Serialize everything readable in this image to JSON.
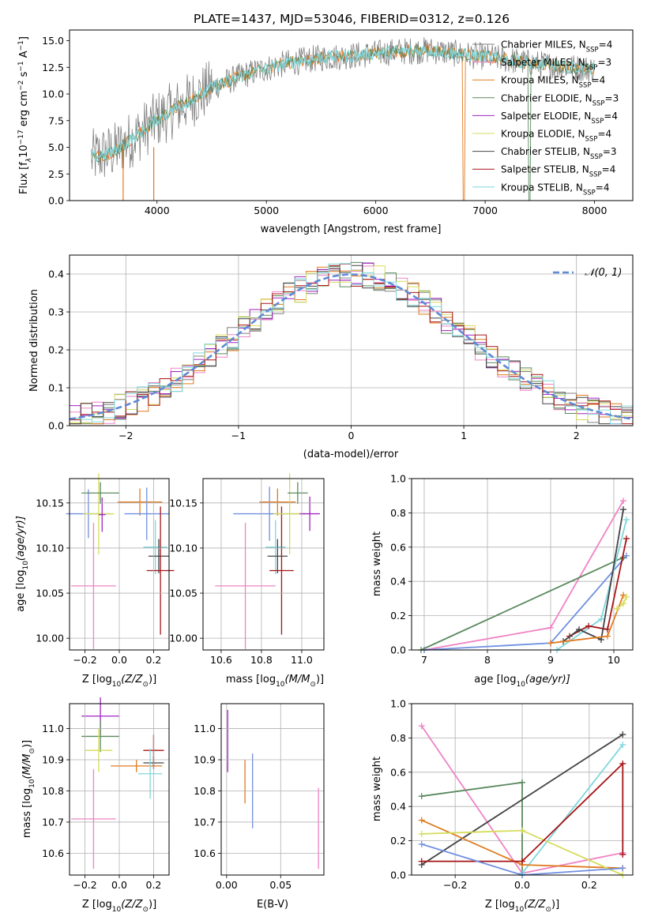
{
  "figure": {
    "title": "PLATE=1437, MJD=53046, FIBERID=0312, z=0.126"
  },
  "colors": {
    "chabrier_miles": "#808080",
    "salpeter_miles": "#ef83c4",
    "kroupa_miles": "#e07a1f",
    "chabrier_elodie": "#5a8a5e",
    "salpeter_elodie": "#a324c2",
    "kroupa_elodie": "#d6dc5a",
    "chabrier_stelib": "#444444",
    "salpeter_stelib": "#a81416",
    "kroupa_stelib": "#7fd6dc",
    "gauss": "#5f8ad6",
    "blue": "#6f8fe0"
  },
  "chart_data": [
    {
      "id": "spectrum",
      "type": "line",
      "xlabel": "wavelength [Angstrom, rest frame]",
      "ylabel_main": "Flux [f",
      "ylabel_sub": "λ",
      "ylabel_rest": "10",
      "ylabel_exp": "−17",
      "ylabel_tail": " erg cm",
      "ylabel_tail2": " s",
      "ylabel_tail3": " A",
      "xlim": [
        3200,
        8350
      ],
      "ylim": [
        0,
        16
      ],
      "xticks": [
        "4000",
        "5000",
        "6000",
        "7000",
        "8000"
      ],
      "yticks": [
        "0.0",
        "2.5",
        "5.0",
        "7.5",
        "10.0",
        "12.5",
        "15.0"
      ],
      "legend": [
        {
          "label": "Chabrier MILES, N",
          "n": "4"
        },
        {
          "label": "Salpeter MILES, N",
          "n": "3"
        },
        {
          "label": "Kroupa MILES, N",
          "n": "4"
        },
        {
          "label": "Chabrier ELODIE, N",
          "n": "3"
        },
        {
          "label": "Salpeter ELODIE, N",
          "n": "4"
        },
        {
          "label": "Kroupa ELODIE, N",
          "n": "4"
        },
        {
          "label": "Chabrier STELIB, N",
          "n": "3"
        },
        {
          "label": "Salpeter STELIB, N",
          "n": "4"
        },
        {
          "label": "Kroupa STELIB, N",
          "n": "4"
        }
      ],
      "legend_sub": "SSP",
      "model_trend": {
        "x": [
          3400,
          3600,
          3800,
          4000,
          4200,
          4500,
          4800,
          5000,
          5200,
          5500,
          5800,
          6000,
          6200,
          6500,
          6800,
          7000,
          7200,
          7500,
          7800,
          8000
        ],
        "y": [
          4.0,
          4.6,
          6.0,
          7.6,
          8.8,
          10.6,
          11.8,
          12.4,
          12.9,
          13.4,
          13.6,
          13.8,
          14.0,
          14.1,
          13.7,
          13.5,
          13.2,
          12.8,
          12.5,
          12.3
        ]
      },
      "model_cutoffs": [
        {
          "name": "Kroupa ELODIE",
          "x": 6800
        },
        {
          "name": "Chabrier ELODIE",
          "x": 7400
        }
      ]
    },
    {
      "id": "residuals",
      "type": "histogram",
      "xlabel": "(data-model)/error",
      "ylabel": "Normed distribution",
      "xlim": [
        -2.5,
        2.5
      ],
      "ylim": [
        0,
        0.45
      ],
      "xticks": [
        "−2",
        "−1",
        "0",
        "1",
        "2"
      ],
      "yticks": [
        "0.0",
        "0.1",
        "0.2",
        "0.3",
        "0.4"
      ],
      "legend": "𝒩(0, 1)",
      "bin_width": 0.1,
      "gaussian": {
        "mu": 0,
        "sigma": 1
      }
    },
    {
      "id": "age_vs_Z",
      "type": "scatter",
      "xlabel": "Z [log",
      "xlabel_tail": "(Z/Z",
      "ylabel": "age  [log",
      "ylabel_tail": "(age/yr)]",
      "xlim": [
        -0.29,
        0.29
      ],
      "ylim": [
        9.987,
        10.177
      ],
      "xticks": [
        "−0.2",
        "0.0",
        "0.2"
      ],
      "yticks": [
        "10.00",
        "10.05",
        "10.10",
        "10.15"
      ],
      "points": [
        {
          "x": -0.18,
          "y": 10.138,
          "xerr": 0.13,
          "yerr": 0.027
        },
        {
          "x": -0.12,
          "y": 10.138,
          "xerr": 0.09,
          "yerr": 0.045
        },
        {
          "x": -0.11,
          "y": 10.161,
          "xerr": 0.11,
          "yerr": 0.012
        },
        {
          "x": -0.1,
          "y": 10.137,
          "xerr": 0.02,
          "yerr": 0.019
        },
        {
          "x": 0.12,
          "y": 10.151,
          "xerr": 0.13,
          "yerr": 0.015
        },
        {
          "x": 0.16,
          "y": 10.138,
          "xerr": 0.13,
          "yerr": 0.029
        },
        {
          "x": -0.15,
          "y": 10.058,
          "xerr": 0.13,
          "yerr": 0.07
        },
        {
          "x": 0.21,
          "y": 10.101,
          "xerr": 0.07,
          "yerr": 0.03
        },
        {
          "x": 0.23,
          "y": 10.091,
          "xerr": 0.06,
          "yerr": 0.019
        },
        {
          "x": 0.24,
          "y": 10.075,
          "xerr": 0.08,
          "yerr": 0.071
        }
      ]
    },
    {
      "id": "age_vs_mass",
      "type": "scatter",
      "xlabel": "mass [log",
      "xlabel_tail": "(M/M",
      "xlim": [
        10.51,
        11.11
      ],
      "ylim": [
        9.987,
        10.177
      ],
      "xticks": [
        "10.6",
        "10.8",
        "11.0"
      ],
      "yticks": [
        "10.00",
        "10.05",
        "10.10",
        "10.15"
      ],
      "points": [
        {
          "x": 10.72,
          "y": 10.058,
          "xerr": 0.15,
          "yerr": 0.07
        },
        {
          "x": 10.84,
          "y": 10.138,
          "xerr": 0.18,
          "yerr": 0.03
        },
        {
          "x": 10.88,
          "y": 10.151,
          "xerr": 0.09,
          "yerr": 0.015
        },
        {
          "x": 10.87,
          "y": 10.101,
          "xerr": 0.05,
          "yerr": 0.03
        },
        {
          "x": 10.88,
          "y": 10.091,
          "xerr": 0.05,
          "yerr": 0.019
        },
        {
          "x": 10.9,
          "y": 10.075,
          "xerr": 0.06,
          "yerr": 0.071
        },
        {
          "x": 10.94,
          "y": 10.138,
          "xerr": 0.08,
          "yerr": 0.045
        },
        {
          "x": 10.98,
          "y": 10.161,
          "xerr": 0.05,
          "yerr": 0.012
        },
        {
          "x": 11.04,
          "y": 10.138,
          "xerr": 0.05,
          "yerr": 0.019
        }
      ]
    },
    {
      "id": "weight_vs_age",
      "type": "line",
      "xlabel": "age  [log",
      "xlabel_tail": "(age/yr)]",
      "ylabel": "mass weight",
      "xlim": [
        6.8,
        10.3
      ],
      "ylim": [
        0,
        1
      ],
      "xticks": [
        "7",
        "8",
        "9",
        "10"
      ],
      "yticks": [
        "0.0",
        "0.2",
        "0.4",
        "0.6",
        "0.8",
        "1.0"
      ],
      "series": [
        {
          "x": [
            7.0,
            9.0,
            10.15
          ],
          "y": [
            0.0,
            0.13,
            0.87
          ]
        },
        {
          "x": [
            7.0,
            9.0,
            10.2
          ],
          "y": [
            0.0,
            0.04,
            0.55
          ]
        },
        {
          "x": [
            6.95,
            10.15
          ],
          "y": [
            0.0,
            0.54
          ]
        },
        {
          "x": [
            9.1,
            9.8,
            10.2
          ],
          "y": [
            0.0,
            0.18,
            0.76
          ]
        },
        {
          "x": [
            9.3,
            9.6,
            9.9,
            10.2
          ],
          "y": [
            0.08,
            0.14,
            0.12,
            0.65
          ]
        },
        {
          "x": [
            9.2,
            9.45,
            9.8,
            10.15
          ],
          "y": [
            0.05,
            0.12,
            0.06,
            0.82
          ]
        },
        {
          "x": [
            9.0,
            9.9,
            10.15
          ],
          "y": [
            0.04,
            0.08,
            0.32
          ]
        },
        {
          "x": [
            10.05,
            10.15,
            10.2
          ],
          "y": [
            0.24,
            0.27,
            0.31
          ]
        }
      ]
    },
    {
      "id": "mass_vs_Z",
      "type": "scatter",
      "xlabel": "Z [log",
      "xlabel_tail": "(Z/Z",
      "ylabel": "mass [log",
      "ylabel_tail": "(M/M",
      "xlim": [
        -0.29,
        0.29
      ],
      "ylim": [
        10.53,
        11.08
      ],
      "xticks": [
        "−0.2",
        "0.0",
        "0.2"
      ],
      "yticks": [
        "10.6",
        "10.7",
        "10.8",
        "10.9",
        "11.0"
      ],
      "points": [
        {
          "x": -0.11,
          "y": 11.04,
          "xerr": 0.11,
          "yerr": 0.06
        },
        {
          "x": -0.11,
          "y": 10.975,
          "xerr": 0.11,
          "yerr": 0.05
        },
        {
          "x": -0.12,
          "y": 10.93,
          "xerr": 0.08,
          "yerr": 0.07
        },
        {
          "x": -0.15,
          "y": 10.71,
          "xerr": 0.13,
          "yerr": 0.16
        },
        {
          "x": 0.1,
          "y": 10.88,
          "xerr": 0.15,
          "yerr": 0.02
        },
        {
          "x": 0.2,
          "y": 10.93,
          "xerr": 0.06,
          "yerr": 0.05
        },
        {
          "x": 0.2,
          "y": 10.89,
          "xerr": 0.06,
          "yerr": 0.02
        },
        {
          "x": 0.18,
          "y": 10.855,
          "xerr": 0.07,
          "yerr": 0.08
        }
      ]
    },
    {
      "id": "mass_vs_EBV",
      "type": "scatter",
      "xlabel": "E(B-V)",
      "xlim": [
        -0.005,
        0.09
      ],
      "ylim": [
        10.53,
        11.08
      ],
      "xticks": [
        "0.00",
        "0.05"
      ],
      "yticks": [
        "10.6",
        "10.7",
        "10.8",
        "10.9",
        "11.0"
      ],
      "points": [
        {
          "x": 0.001,
          "y": 10.96,
          "yerr": 0.1
        },
        {
          "x": 0.017,
          "y": 10.83,
          "yerr": 0.07
        },
        {
          "x": 0.024,
          "y": 10.8,
          "yerr": 0.12
        },
        {
          "x": 0.085,
          "y": 10.68,
          "yerr": 0.13
        }
      ]
    },
    {
      "id": "weight_vs_Z",
      "type": "line",
      "xlabel": "Z [log",
      "xlabel_tail": "(Z/Z",
      "ylabel": "mass weight",
      "xlim": [
        -0.33,
        0.33
      ],
      "ylim": [
        0,
        1
      ],
      "xticks": [
        "−0.2",
        "0.0",
        "0.2"
      ],
      "yticks": [
        "0.0",
        "0.2",
        "0.4",
        "0.6",
        "0.8",
        "1.0"
      ],
      "series": [
        {
          "x": [
            -0.3,
            0.0,
            0.3,
            0.3
          ],
          "y": [
            0.87,
            0.01,
            0.13,
            0.12
          ]
        },
        {
          "x": [
            -0.3,
            0.0
          ],
          "y": [
            0.46,
            0.54
          ]
        },
        {
          "x": [
            0.0,
            0.0
          ],
          "y": [
            0.54,
            0.0
          ]
        },
        {
          "x": [
            -0.3,
            0.3
          ],
          "y": [
            0.06,
            0.82
          ]
        },
        {
          "x": [
            0.0,
            0.3
          ],
          "y": [
            0.01,
            0.76
          ]
        },
        {
          "x": [
            -0.3,
            0.0,
            0.3,
            0.3
          ],
          "y": [
            0.32,
            0.06,
            0.04,
            0.04
          ]
        },
        {
          "x": [
            -0.3,
            0.0,
            0.3
          ],
          "y": [
            0.24,
            0.26,
            0.0
          ]
        },
        {
          "x": [
            -0.3,
            0.0,
            0.3,
            0.3
          ],
          "y": [
            0.08,
            0.08,
            0.65,
            0.12
          ]
        },
        {
          "x": [
            -0.3,
            0.0,
            0.3
          ],
          "y": [
            0.18,
            0.0,
            0.04
          ]
        }
      ]
    }
  ]
}
